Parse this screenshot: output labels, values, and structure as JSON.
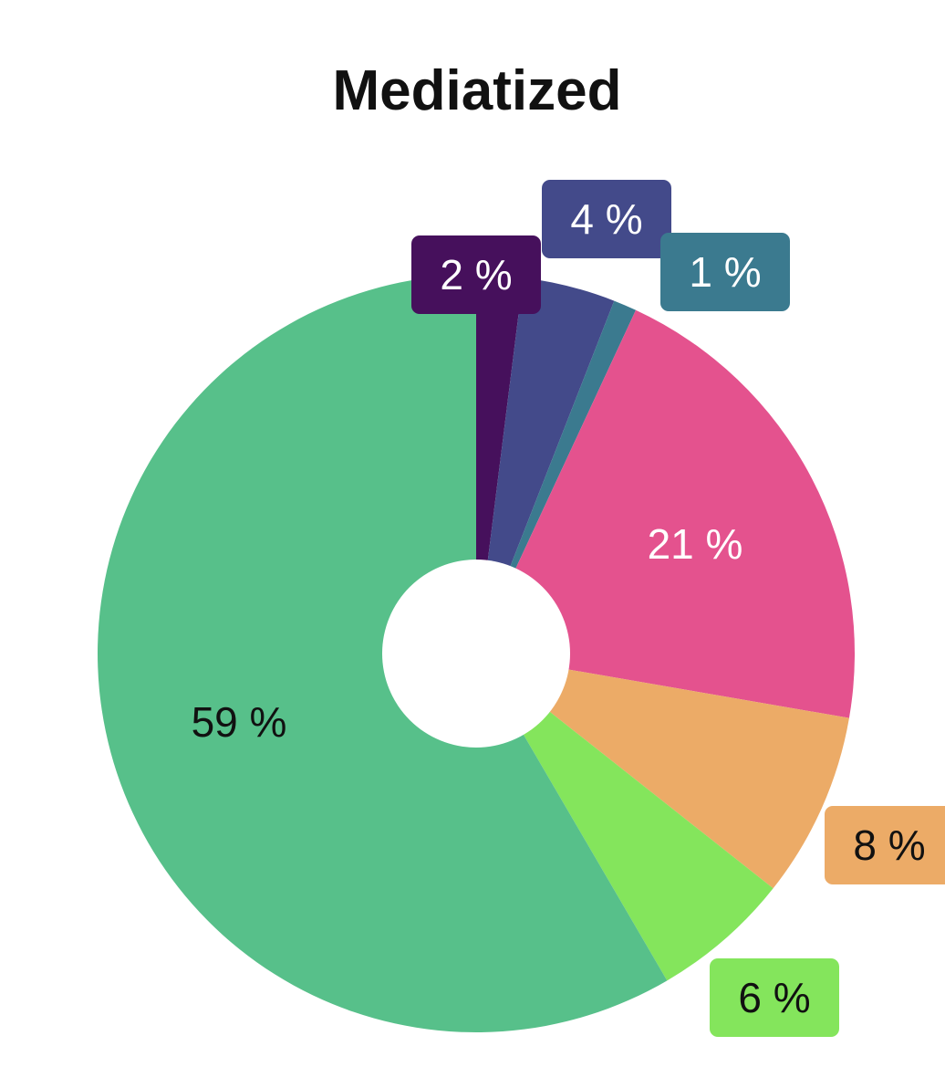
{
  "chart_data": {
    "type": "pie",
    "title": "Mediatized",
    "donut": true,
    "slices": [
      {
        "label": "2 %",
        "value": 2,
        "color": "#46105c",
        "label_color": "#ffffff",
        "label_style": "callout"
      },
      {
        "label": "4 %",
        "value": 4,
        "color": "#434a8a",
        "label_color": "#ffffff",
        "label_style": "callout"
      },
      {
        "label": "1 %",
        "value": 1,
        "color": "#3b7a8f",
        "label_color": "#ffffff",
        "label_style": "callout"
      },
      {
        "label": "21 %",
        "value": 21,
        "color": "#e4528e",
        "label_color": "#ffffff",
        "label_style": "inside"
      },
      {
        "label": "8 %",
        "value": 8,
        "color": "#ecab67",
        "label_color": "#111111",
        "label_style": "callout"
      },
      {
        "label": "6 %",
        "value": 6,
        "color": "#84e55c",
        "label_color": "#111111",
        "label_style": "callout"
      },
      {
        "label": "59 %",
        "value": 59,
        "color": "#57c08a",
        "label_color": "#111111",
        "label_style": "inside"
      }
    ]
  }
}
